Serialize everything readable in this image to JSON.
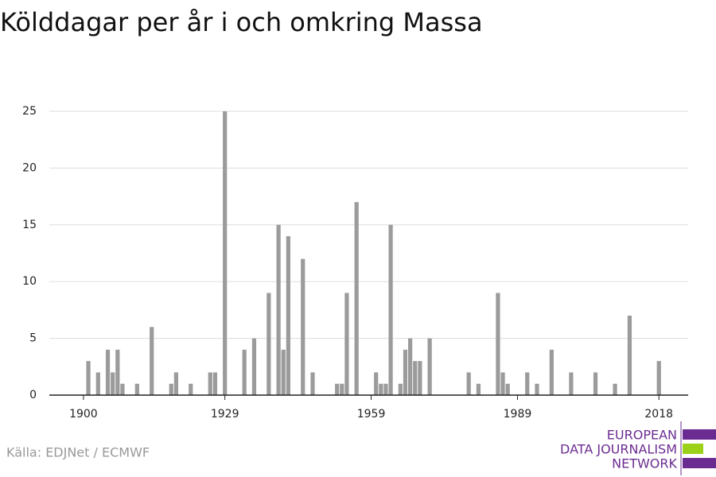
{
  "chart_data": {
    "type": "bar",
    "title": "Kölddagar per år i och omkring Massa",
    "source": "Källa: EDJNet / ECMWF",
    "logo": [
      "EUROPEAN",
      "DATA JOURNALISM",
      "NETWORK"
    ],
    "x": [
      1901,
      1903,
      1905,
      1906,
      1907,
      1908,
      1911,
      1914,
      1918,
      1919,
      1922,
      1926,
      1927,
      1929,
      1933,
      1935,
      1938,
      1940,
      1941,
      1942,
      1945,
      1947,
      1952,
      1953,
      1954,
      1956,
      1960,
      1961,
      1962,
      1963,
      1965,
      1966,
      1967,
      1968,
      1969,
      1971,
      1979,
      1981,
      1985,
      1986,
      1987,
      1991,
      1993,
      1996,
      2000,
      2005,
      2009,
      2012,
      2018
    ],
    "values": [
      3,
      2,
      4,
      2,
      4,
      1,
      1,
      6,
      1,
      2,
      1,
      2,
      2,
      25,
      4,
      5,
      9,
      15,
      4,
      14,
      12,
      2,
      1,
      1,
      9,
      17,
      2,
      1,
      1,
      15,
      1,
      4,
      5,
      3,
      3,
      5,
      2,
      1,
      9,
      2,
      1,
      2,
      1,
      4,
      2,
      2,
      1,
      7,
      3
    ],
    "color": "#9b9b9b",
    "xlim": [
      1893,
      2024
    ],
    "xticks": [
      1900,
      1929,
      1959,
      1989,
      2018
    ],
    "ylim": [
      0,
      25
    ],
    "yticks": [
      0,
      5,
      10,
      15,
      20,
      25
    ],
    "grid": true
  }
}
